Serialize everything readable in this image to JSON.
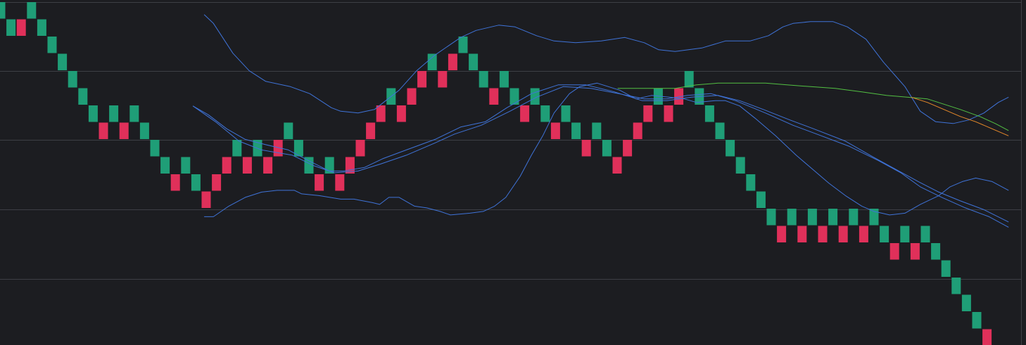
{
  "chart_data": {
    "type": "renko",
    "colors": {
      "background": "#1c1d21",
      "grid": "#3d3f45",
      "up": "#e0305a",
      "down": "#1f9e77",
      "band": "#3f73d8",
      "ma_green": "#53c043",
      "ma_orange": "#e88a2a"
    },
    "grid": true,
    "brick_size": 1,
    "ylim": [
      0,
      19.63
    ],
    "x_start": 0,
    "x_step": 1,
    "bricks": [
      {
        "start": 1,
        "dir": "down"
      },
      {
        "start": 0,
        "dir": "down"
      },
      {
        "start": 0,
        "dir": "up"
      },
      {
        "start": 1,
        "dir": "down"
      },
      {
        "start": 0,
        "dir": "down"
      },
      {
        "start": -1,
        "dir": "down"
      },
      {
        "start": -2,
        "dir": "down"
      },
      {
        "start": -3,
        "dir": "down"
      },
      {
        "start": -4,
        "dir": "down"
      },
      {
        "start": -5,
        "dir": "down"
      },
      {
        "start": -6,
        "dir": "up"
      },
      {
        "start": -5,
        "dir": "down"
      },
      {
        "start": -6,
        "dir": "up"
      },
      {
        "start": -5,
        "dir": "down"
      },
      {
        "start": -6,
        "dir": "down"
      },
      {
        "start": -7,
        "dir": "down"
      },
      {
        "start": -8,
        "dir": "down"
      },
      {
        "start": -9,
        "dir": "up"
      },
      {
        "start": -8,
        "dir": "down"
      },
      {
        "start": -9,
        "dir": "down"
      },
      {
        "start": -10,
        "dir": "up"
      },
      {
        "start": -9,
        "dir": "up"
      },
      {
        "start": -8,
        "dir": "up"
      },
      {
        "start": -7,
        "dir": "down"
      },
      {
        "start": -8,
        "dir": "up"
      },
      {
        "start": -7,
        "dir": "down"
      },
      {
        "start": -8,
        "dir": "up"
      },
      {
        "start": -7,
        "dir": "up"
      },
      {
        "start": -6,
        "dir": "down"
      },
      {
        "start": -7,
        "dir": "down"
      },
      {
        "start": -8,
        "dir": "down"
      },
      {
        "start": -9,
        "dir": "up"
      },
      {
        "start": -8,
        "dir": "down"
      },
      {
        "start": -9,
        "dir": "up"
      },
      {
        "start": -8,
        "dir": "up"
      },
      {
        "start": -7,
        "dir": "up"
      },
      {
        "start": -6,
        "dir": "up"
      },
      {
        "start": -5,
        "dir": "up"
      },
      {
        "start": -4,
        "dir": "down"
      },
      {
        "start": -5,
        "dir": "up"
      },
      {
        "start": -4,
        "dir": "up"
      },
      {
        "start": -3,
        "dir": "up"
      },
      {
        "start": -2,
        "dir": "down"
      },
      {
        "start": -3,
        "dir": "up"
      },
      {
        "start": -2,
        "dir": "up"
      },
      {
        "start": -1,
        "dir": "down"
      },
      {
        "start": -2,
        "dir": "down"
      },
      {
        "start": -3,
        "dir": "down"
      },
      {
        "start": -4,
        "dir": "up"
      },
      {
        "start": -3,
        "dir": "down"
      },
      {
        "start": -4,
        "dir": "down"
      },
      {
        "start": -5,
        "dir": "up"
      },
      {
        "start": -4,
        "dir": "down"
      },
      {
        "start": -5,
        "dir": "down"
      },
      {
        "start": -6,
        "dir": "up"
      },
      {
        "start": -5,
        "dir": "down"
      },
      {
        "start": -6,
        "dir": "down"
      },
      {
        "start": -7,
        "dir": "up"
      },
      {
        "start": -6,
        "dir": "down"
      },
      {
        "start": -7,
        "dir": "down"
      },
      {
        "start": -8,
        "dir": "up"
      },
      {
        "start": -7,
        "dir": "up"
      },
      {
        "start": -6,
        "dir": "up"
      },
      {
        "start": -5,
        "dir": "up"
      },
      {
        "start": -4,
        "dir": "down"
      },
      {
        "start": -5,
        "dir": "up"
      },
      {
        "start": -4,
        "dir": "up"
      },
      {
        "start": -3,
        "dir": "down"
      },
      {
        "start": -4,
        "dir": "down"
      },
      {
        "start": -5,
        "dir": "down"
      },
      {
        "start": -6,
        "dir": "down"
      },
      {
        "start": -7,
        "dir": "down"
      },
      {
        "start": -8,
        "dir": "down"
      },
      {
        "start": -9,
        "dir": "down"
      },
      {
        "start": -10,
        "dir": "down"
      },
      {
        "start": -11,
        "dir": "down"
      },
      {
        "start": -12,
        "dir": "up"
      },
      {
        "start": -11,
        "dir": "down"
      },
      {
        "start": -12,
        "dir": "up"
      },
      {
        "start": -11,
        "dir": "down"
      },
      {
        "start": -12,
        "dir": "up"
      },
      {
        "start": -11,
        "dir": "down"
      },
      {
        "start": -12,
        "dir": "up"
      },
      {
        "start": -11,
        "dir": "down"
      },
      {
        "start": -12,
        "dir": "up"
      },
      {
        "start": -11,
        "dir": "down"
      },
      {
        "start": -12,
        "dir": "down"
      },
      {
        "start": -13,
        "dir": "up"
      },
      {
        "start": -12,
        "dir": "down"
      },
      {
        "start": -13,
        "dir": "up"
      },
      {
        "start": -12,
        "dir": "down"
      },
      {
        "start": -13,
        "dir": "down"
      },
      {
        "start": -14,
        "dir": "down"
      },
      {
        "start": -15,
        "dir": "down"
      },
      {
        "start": -16,
        "dir": "down"
      },
      {
        "start": -17,
        "dir": "down"
      },
      {
        "start": -18,
        "dir": "up"
      }
    ],
    "series": [
      {
        "role": "bollinger-upper",
        "color": "#3f73d8",
        "points": [
          [
            19.9,
            18.8
          ],
          [
            20.8,
            18.3
          ],
          [
            22.7,
            16.6
          ],
          [
            24.3,
            15.6
          ],
          [
            25.9,
            15.0
          ],
          [
            28.3,
            14.7
          ],
          [
            30.2,
            14.3
          ],
          [
            32.3,
            13.5
          ],
          [
            33.2,
            13.3
          ],
          [
            34.9,
            13.2
          ],
          [
            36.5,
            13.4
          ],
          [
            38.9,
            14.5
          ],
          [
            40.6,
            15.6
          ],
          [
            42.4,
            16.5
          ],
          [
            44.9,
            17.5
          ],
          [
            46.4,
            17.9
          ],
          [
            48.6,
            18.2
          ],
          [
            50.2,
            18.1
          ],
          [
            52.3,
            17.6
          ],
          [
            54.0,
            17.3
          ],
          [
            56.1,
            17.2
          ],
          [
            58.6,
            17.3
          ],
          [
            60.9,
            17.5
          ],
          [
            62.8,
            17.2
          ],
          [
            64.2,
            16.8
          ],
          [
            65.8,
            16.7
          ],
          [
            68.4,
            16.9
          ],
          [
            70.7,
            17.3
          ],
          [
            73.1,
            17.3
          ],
          [
            74.9,
            17.6
          ],
          [
            76.3,
            18.1
          ],
          [
            77.3,
            18.3
          ],
          [
            79.0,
            18.4
          ],
          [
            81.2,
            18.4
          ],
          [
            82.6,
            18.1
          ],
          [
            84.4,
            17.4
          ],
          [
            86.1,
            16.1
          ],
          [
            88.2,
            14.7
          ],
          [
            89.7,
            13.3
          ],
          [
            91.2,
            12.7
          ],
          [
            92.9,
            12.6
          ],
          [
            94.4,
            12.8
          ],
          [
            95.9,
            13.2
          ],
          [
            97.3,
            13.8
          ],
          [
            98.3,
            14.1
          ]
        ]
      },
      {
        "role": "bollinger-middle",
        "color": "#3f73d8",
        "points": [
          [
            18.8,
            13.6
          ],
          [
            21.0,
            12.7
          ],
          [
            23.3,
            11.6
          ],
          [
            25.5,
            11.1
          ],
          [
            28.5,
            10.8
          ],
          [
            30.6,
            10.2
          ],
          [
            32.6,
            9.8
          ],
          [
            34.9,
            9.9
          ],
          [
            37.1,
            10.3
          ],
          [
            39.6,
            10.8
          ],
          [
            42.4,
            11.5
          ],
          [
            44.3,
            12.0
          ],
          [
            46.9,
            12.5
          ],
          [
            49.7,
            13.3
          ],
          [
            52.3,
            14.1
          ],
          [
            54.9,
            14.7
          ],
          [
            57.6,
            14.6
          ],
          [
            60.3,
            14.3
          ],
          [
            62.8,
            14.0
          ],
          [
            65.0,
            14.0
          ],
          [
            67.0,
            14.2
          ],
          [
            69.3,
            14.3
          ],
          [
            71.7,
            13.9
          ],
          [
            74.6,
            13.2
          ],
          [
            77.3,
            12.5
          ],
          [
            79.6,
            12.0
          ],
          [
            82.8,
            11.3
          ],
          [
            85.6,
            10.5
          ],
          [
            87.8,
            9.8
          ],
          [
            89.7,
            9.0
          ],
          [
            91.8,
            8.4
          ],
          [
            94.1,
            7.8
          ],
          [
            96.4,
            7.3
          ],
          [
            98.3,
            6.7
          ]
        ]
      },
      {
        "role": "moving-average",
        "color": "#3f73d8",
        "points": [
          [
            18.8,
            13.6
          ],
          [
            20.3,
            13.1
          ],
          [
            22.1,
            12.3
          ],
          [
            23.9,
            11.7
          ],
          [
            25.9,
            11.4
          ],
          [
            28.1,
            11.1
          ],
          [
            30.4,
            10.4
          ],
          [
            32.1,
            9.9
          ],
          [
            33.5,
            9.9
          ],
          [
            35.5,
            10.1
          ],
          [
            37.3,
            10.6
          ],
          [
            39.6,
            11.1
          ],
          [
            42.4,
            11.7
          ],
          [
            44.9,
            12.4
          ],
          [
            47.3,
            12.7
          ],
          [
            49.4,
            13.5
          ],
          [
            51.8,
            14.3
          ],
          [
            54.4,
            14.8
          ],
          [
            57.1,
            14.8
          ],
          [
            59.9,
            14.4
          ],
          [
            62.6,
            13.9
          ],
          [
            65.0,
            13.9
          ],
          [
            67.4,
            14.1
          ],
          [
            70.0,
            14.2
          ],
          [
            72.1,
            13.9
          ],
          [
            74.4,
            13.4
          ],
          [
            77.0,
            12.8
          ],
          [
            79.3,
            12.3
          ],
          [
            82.4,
            11.6
          ],
          [
            85.1,
            10.7
          ],
          [
            87.3,
            10.0
          ],
          [
            89.5,
            9.3
          ],
          [
            91.5,
            8.7
          ],
          [
            93.6,
            8.2
          ],
          [
            95.9,
            7.7
          ],
          [
            98.3,
            7.0
          ]
        ]
      },
      {
        "role": "bollinger-lower",
        "color": "#3f73d8",
        "points": [
          [
            19.9,
            7.3
          ],
          [
            20.8,
            7.3
          ],
          [
            22.3,
            7.9
          ],
          [
            23.9,
            8.4
          ],
          [
            25.5,
            8.7
          ],
          [
            27.0,
            8.8
          ],
          [
            28.7,
            8.8
          ],
          [
            29.4,
            8.6
          ],
          [
            31.1,
            8.5
          ],
          [
            33.2,
            8.3
          ],
          [
            34.5,
            8.3
          ],
          [
            36.3,
            8.1
          ],
          [
            37.0,
            8.0
          ],
          [
            37.9,
            8.4
          ],
          [
            38.9,
            8.4
          ],
          [
            40.4,
            7.9
          ],
          [
            41.6,
            7.8
          ],
          [
            42.9,
            7.6
          ],
          [
            43.9,
            7.4
          ],
          [
            45.8,
            7.5
          ],
          [
            47.1,
            7.6
          ],
          [
            48.2,
            7.9
          ],
          [
            49.3,
            8.4
          ],
          [
            50.7,
            9.6
          ],
          [
            51.8,
            10.8
          ],
          [
            52.9,
            11.9
          ],
          [
            54.0,
            13.2
          ],
          [
            55.5,
            14.3
          ],
          [
            56.5,
            14.7
          ],
          [
            58.2,
            14.9
          ],
          [
            60.4,
            14.5
          ],
          [
            62.0,
            14.0
          ],
          [
            63.5,
            14.2
          ],
          [
            65.2,
            14.1
          ],
          [
            66.7,
            14.0
          ],
          [
            67.9,
            13.8
          ],
          [
            69.7,
            13.9
          ],
          [
            70.7,
            13.9
          ],
          [
            72.1,
            13.6
          ],
          [
            73.6,
            12.9
          ],
          [
            75.6,
            11.9
          ],
          [
            77.6,
            10.8
          ],
          [
            79.6,
            9.8
          ],
          [
            80.8,
            9.2
          ],
          [
            82.4,
            8.5
          ],
          [
            84.0,
            7.9
          ],
          [
            85.2,
            7.6
          ],
          [
            86.7,
            7.4
          ],
          [
            88.2,
            7.5
          ],
          [
            89.7,
            8.0
          ],
          [
            91.5,
            8.5
          ],
          [
            92.6,
            9.0
          ],
          [
            93.8,
            9.3
          ],
          [
            95.1,
            9.5
          ],
          [
            96.7,
            9.3
          ],
          [
            98.3,
            8.8
          ]
        ]
      },
      {
        "role": "moving-average",
        "color": "#53c043",
        "points": [
          [
            60.2,
            14.6
          ],
          [
            62.0,
            14.6
          ],
          [
            64.2,
            14.6
          ],
          [
            65.8,
            14.6
          ],
          [
            67.9,
            14.8
          ],
          [
            70.0,
            14.9
          ],
          [
            72.3,
            14.9
          ],
          [
            74.6,
            14.9
          ],
          [
            76.7,
            14.8
          ],
          [
            79.0,
            14.7
          ],
          [
            81.4,
            14.6
          ],
          [
            84.0,
            14.4
          ],
          [
            86.4,
            14.2
          ],
          [
            88.4,
            14.1
          ],
          [
            90.4,
            14.0
          ],
          [
            92.0,
            13.7
          ],
          [
            93.6,
            13.4
          ],
          [
            95.5,
            13.0
          ],
          [
            97.0,
            12.6
          ],
          [
            98.3,
            12.2
          ]
        ]
      },
      {
        "role": "moving-average",
        "color": "#e88a2a",
        "points": [
          [
            88.8,
            14.1
          ],
          [
            90.4,
            13.8
          ],
          [
            92.0,
            13.4
          ],
          [
            93.6,
            13.0
          ],
          [
            95.1,
            12.7
          ],
          [
            96.7,
            12.3
          ],
          [
            98.3,
            11.9
          ]
        ]
      }
    ]
  }
}
